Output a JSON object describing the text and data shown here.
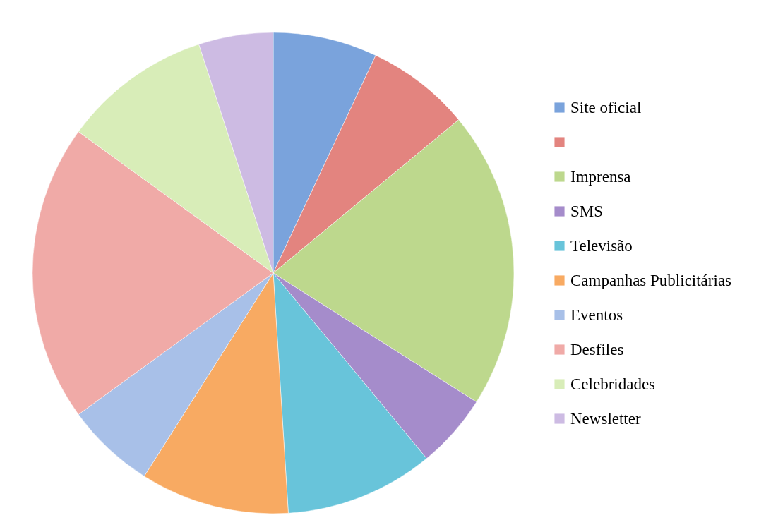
{
  "chart_data": {
    "type": "pie",
    "categories": [
      "Site oficial",
      null,
      "Imprensa",
      "SMS",
      "Televisão",
      "Campanhas Publicitárias",
      "Eventos",
      "Desfiles",
      "Celebridades",
      "Newsletter"
    ],
    "values": [
      7,
      7,
      20,
      5,
      10,
      10,
      6,
      20,
      10,
      5
    ],
    "colors": [
      "#7aa3dc",
      "#e3847f",
      "#bdd88d",
      "#a58ccb",
      "#68c4da",
      "#f8aa62",
      "#a8c0e8",
      "#f0aaa7",
      "#d8edb8",
      "#cdbbe3"
    ],
    "legend": "right"
  }
}
